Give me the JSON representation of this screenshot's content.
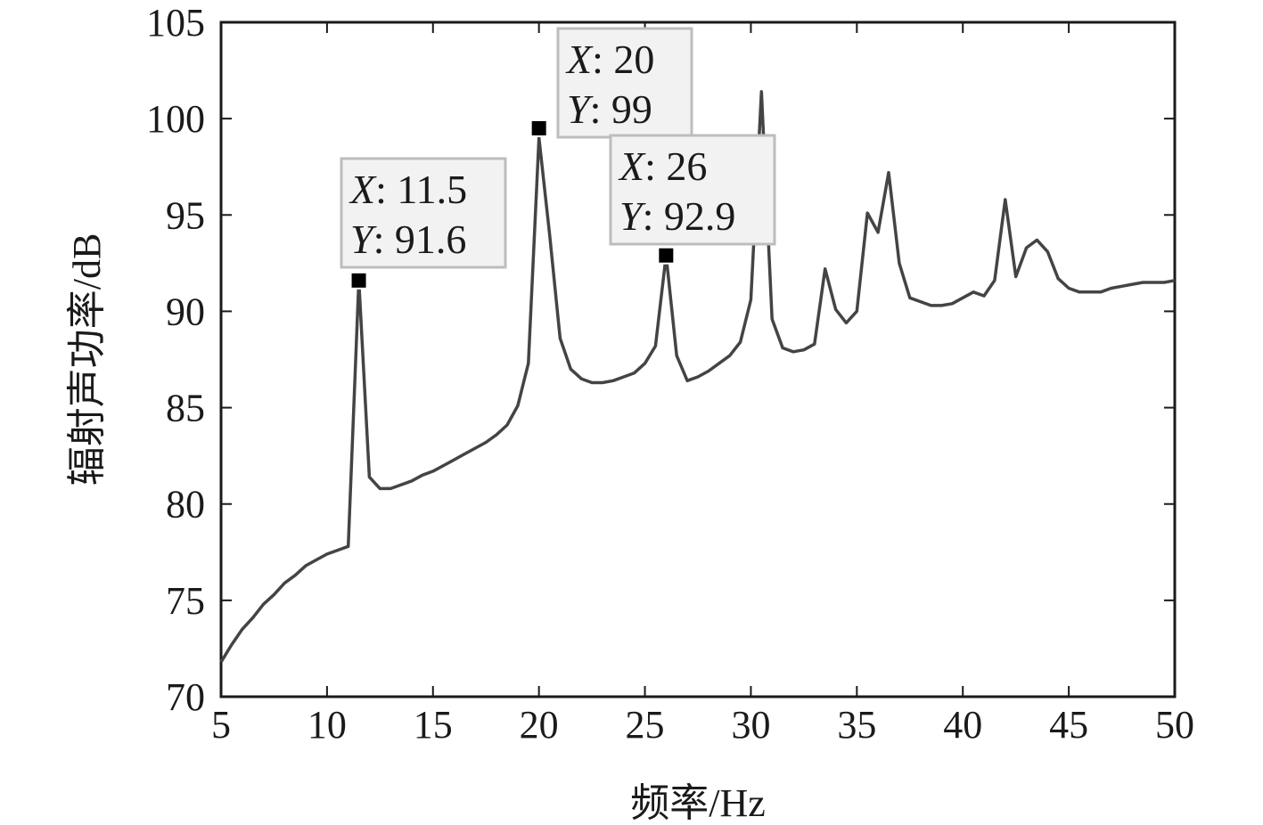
{
  "chart_data": {
    "type": "line",
    "title": "",
    "xlabel": "频率/Hz",
    "ylabel": "辐射声功率/dB",
    "xlim": [
      5,
      50
    ],
    "ylim": [
      70,
      105
    ],
    "xticks": [
      5,
      10,
      15,
      20,
      25,
      30,
      35,
      40,
      45,
      50
    ],
    "yticks": [
      70,
      75,
      80,
      85,
      90,
      95,
      100,
      105
    ],
    "grid": false,
    "legend": "none",
    "series_color": "#444444",
    "series": [
      {
        "x": [
          5,
          5.5,
          6,
          6.5,
          7,
          7.5,
          8,
          8.5,
          9,
          9.5,
          10,
          10.5,
          11,
          11.5,
          12,
          12.5,
          13,
          13.5,
          14,
          14.5,
          15,
          15.5,
          16,
          16.5,
          17,
          17.5,
          18,
          18.5,
          19,
          19.5,
          20,
          20.5,
          21,
          21.5,
          22,
          22.5,
          23,
          23.5,
          24,
          24.5,
          25,
          25.5,
          26,
          26.5,
          27,
          27.5,
          28,
          28.5,
          29,
          29.5,
          30,
          30.5,
          31,
          31.5,
          32,
          32.5,
          33,
          33.5,
          34,
          34.5,
          35,
          35.5,
          36,
          36.5,
          37,
          37.5,
          38,
          38.5,
          39,
          39.5,
          40,
          40.5,
          41,
          41.5,
          42,
          42.5,
          43,
          43.5,
          44,
          44.5,
          45,
          45.5,
          46,
          46.5,
          47,
          47.5,
          48,
          48.5,
          49,
          49.5,
          50
        ],
        "values": [
          71.8,
          72.7,
          73.5,
          74.1,
          74.8,
          75.3,
          75.9,
          76.3,
          76.8,
          77.1,
          77.4,
          77.6,
          77.8,
          91.6,
          81.4,
          80.8,
          80.8,
          81.0,
          81.2,
          81.5,
          81.7,
          82.0,
          82.3,
          82.6,
          82.9,
          83.2,
          83.6,
          84.1,
          85.1,
          87.3,
          99.0,
          94.0,
          88.6,
          87.0,
          86.5,
          86.3,
          86.3,
          86.4,
          86.6,
          86.8,
          87.3,
          88.2,
          92.9,
          87.7,
          86.4,
          86.6,
          86.9,
          87.3,
          87.7,
          88.4,
          90.6,
          101.4,
          89.6,
          88.1,
          87.9,
          88.0,
          88.3,
          92.2,
          90.1,
          89.4,
          90.0,
          95.1,
          94.1,
          97.2,
          92.5,
          90.7,
          90.5,
          90.3,
          90.3,
          90.4,
          90.7,
          91.0,
          90.8,
          91.6,
          95.8,
          91.8,
          93.3,
          93.7,
          93.1,
          91.7,
          91.2,
          91.0,
          91.0,
          91.0,
          91.2,
          91.3,
          91.4,
          91.5,
          91.5,
          91.5,
          91.6
        ]
      }
    ],
    "annotations": [
      {
        "x_label": "X",
        "x_value": "11.5",
        "y_label": "Y",
        "y_value": "91.6",
        "x": 11.5,
        "y": 91.6
      },
      {
        "x_label": "X",
        "x_value": "20",
        "y_label": "Y",
        "y_value": "99",
        "x": 20,
        "y": 99.5
      },
      {
        "x_label": "X",
        "x_value": "26",
        "y_label": "Y",
        "y_value": "92.9",
        "x": 26,
        "y": 92.9
      }
    ]
  }
}
